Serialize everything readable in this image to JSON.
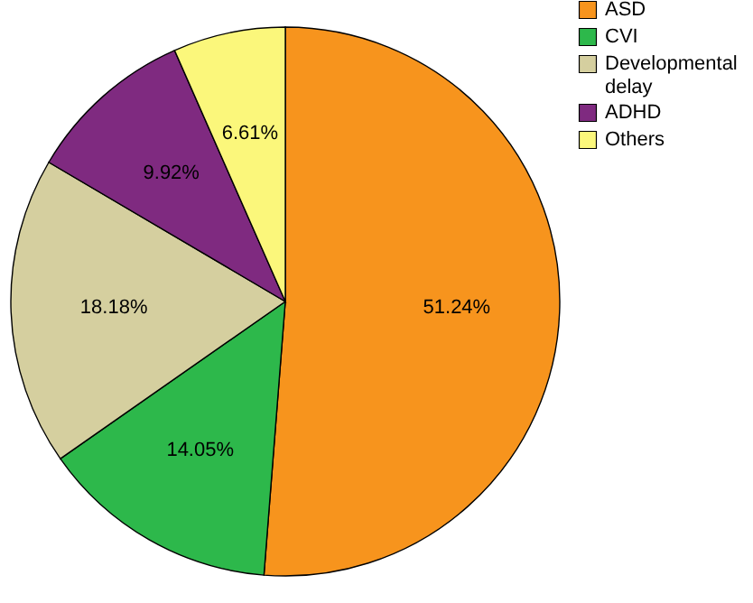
{
  "chart_data": {
    "type": "pie",
    "categories": [
      "ASD",
      "CVI",
      "Developmental delay",
      "ADHD",
      "Others"
    ],
    "values": [
      51.24,
      14.05,
      18.18,
      9.92,
      6.61
    ],
    "value_labels": [
      "51.24%",
      "14.05%",
      "18.18%",
      "9.92%",
      "6.61%"
    ],
    "colors": [
      "#f7941d",
      "#2db84b",
      "#d5cf9f",
      "#7f2a80",
      "#fbf77b"
    ],
    "legend": "top right"
  }
}
